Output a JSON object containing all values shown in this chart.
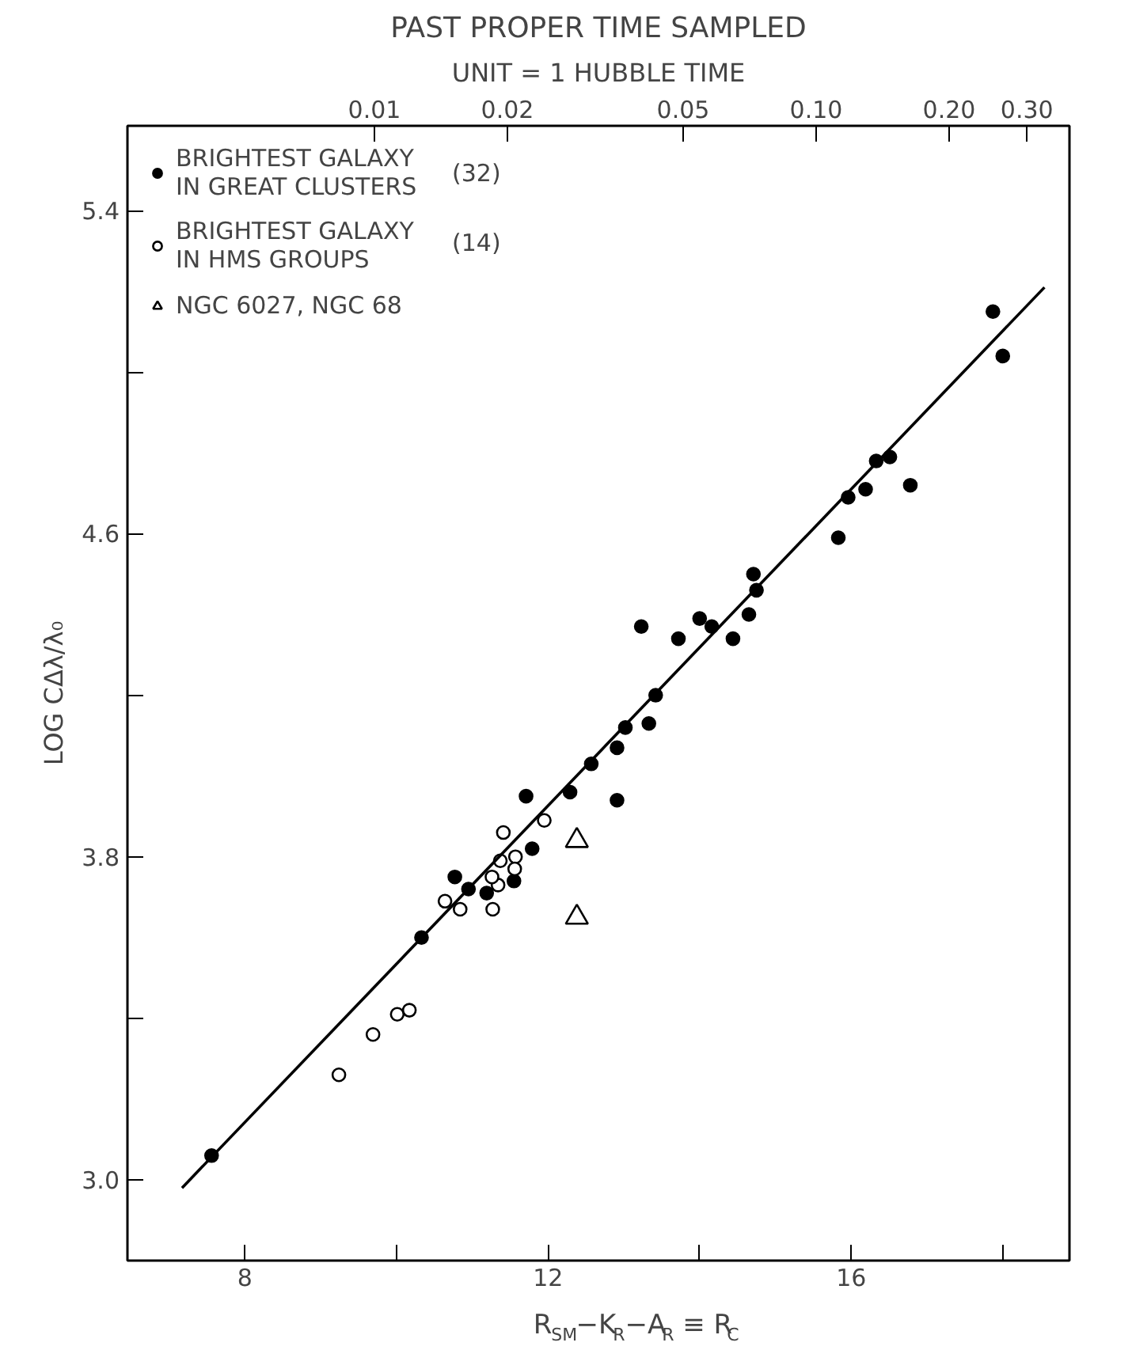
{
  "chart_data": {
    "type": "scatter",
    "title": "PAST PROPER TIME SAMPLED",
    "x2label": "UNIT = 1 HUBBLE TIME",
    "xlabel": "R$_{SM}$−K$_{R}$−A$_{R}$ ≡ R$_{C}$",
    "ylabel": "LOG CΔλ/λ₀",
    "xlim": [
      6.45,
      18.88
    ],
    "ylim": [
      2.8,
      5.61
    ],
    "xticks": [
      8,
      {
        "value": 10,
        "label": null
      },
      12,
      {
        "value": 14,
        "label": null
      },
      16,
      {
        "value": 18,
        "label": null
      }
    ],
    "yticks": [
      {
        "value": 3.0,
        "label": "3.0"
      },
      {
        "value": 3.4,
        "label": null
      },
      {
        "value": 3.8,
        "label": "3.8"
      },
      {
        "value": 4.2,
        "label": null
      },
      {
        "value": 4.6,
        "label": "4.6"
      },
      {
        "value": 5.0,
        "label": null
      },
      {
        "value": 5.4,
        "label": "5.4"
      }
    ],
    "x2lim": [
      0.00276,
      0.3745
    ],
    "log": "x2",
    "x2ticks": [
      0.01,
      0.02,
      0.05,
      {
        "value": 0.1,
        "label": "0.10"
      },
      {
        "value": 0.2,
        "label": "0.20"
      },
      {
        "value": 0.3,
        "label": "0.30"
      }
    ],
    "grid": false,
    "legend": "top left",
    "annotations": [
      "(32)",
      "(14)"
    ],
    "series": [
      {
        "name": "BRIGHTEST GALAXY IN GREAT CLUSTERS",
        "color": "#000000",
        "marker": "circle",
        "x": [
          7.56,
          10.33,
          10.77,
          10.95,
          11.19,
          11.55,
          11.79,
          11.71,
          12.29,
          12.57,
          12.91,
          12.91,
          13.02,
          13.33,
          13.42,
          13.23,
          13.72,
          14.0,
          14.16,
          14.44,
          14.65,
          14.75,
          14.71,
          15.83,
          15.96,
          16.19,
          16.33,
          16.51,
          16.78,
          17.87,
          18.0
        ],
        "values": [
          3.06,
          3.6,
          3.75,
          3.72,
          3.71,
          3.74,
          3.82,
          3.95,
          3.96,
          4.03,
          3.94,
          4.07,
          4.12,
          4.13,
          4.2,
          4.37,
          4.34,
          4.39,
          4.37,
          4.34,
          4.4,
          4.46,
          4.5,
          4.59,
          4.69,
          4.71,
          4.78,
          4.79,
          4.72,
          5.15,
          5.04
        ]
      },
      {
        "name": "BRIGHTEST GALAXY IN HMS GROUPS",
        "color": "#ffffff",
        "marker": "circle",
        "x": [
          9.24,
          9.69,
          10.01,
          10.17,
          10.64,
          10.84,
          11.27,
          11.34,
          11.26,
          11.37,
          11.57,
          11.56,
          11.41,
          11.95
        ],
        "values": [
          3.26,
          3.36,
          3.41,
          3.42,
          3.69,
          3.67,
          3.67,
          3.73,
          3.75,
          3.79,
          3.8,
          3.77,
          3.86,
          3.89
        ]
      },
      {
        "name": "NGC 6027, NGC 68",
        "color": "#ffffff",
        "marker": "triangle",
        "x": [
          12.38,
          12.38
        ],
        "values": [
          3.84,
          3.65
        ]
      },
      {
        "type": "line",
        "color": "#000000",
        "marker": "none",
        "line_style": "solid",
        "x": [
          7.17,
          18.55
        ],
        "values": [
          2.98,
          5.21
        ]
      }
    ]
  }
}
